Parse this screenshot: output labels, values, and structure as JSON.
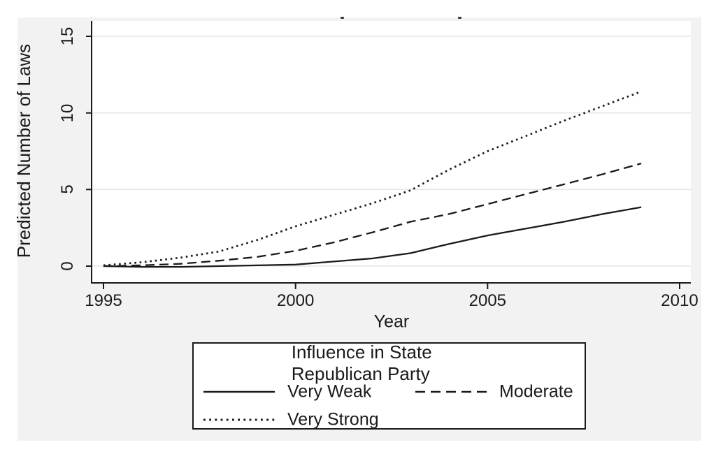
{
  "chart_data": {
    "type": "line",
    "title": "",
    "xlabel": "Year",
    "ylabel": "Predicted Number of Laws",
    "x": [
      1995,
      1996,
      1997,
      1998,
      1999,
      2000,
      2001,
      2002,
      2003,
      2004,
      2005,
      2006,
      2007,
      2008,
      2009
    ],
    "series": [
      {
        "name": "Very Weak",
        "style": "solid",
        "values": [
          0,
          -0.05,
          -0.05,
          0,
          0.05,
          0.1,
          0.3,
          0.5,
          0.85,
          1.45,
          2.0,
          2.45,
          2.9,
          3.4,
          3.85
        ]
      },
      {
        "name": "Moderate",
        "style": "dashed",
        "values": [
          0,
          0.05,
          0.15,
          0.35,
          0.6,
          1.0,
          1.55,
          2.2,
          2.9,
          3.4,
          4.05,
          4.7,
          5.35,
          6.0,
          6.7
        ]
      },
      {
        "name": "Very Strong",
        "style": "dotted",
        "values": [
          0.05,
          0.25,
          0.55,
          0.95,
          1.7,
          2.6,
          3.35,
          4.1,
          4.95,
          6.3,
          7.5,
          8.5,
          9.5,
          10.45,
          11.4
        ]
      }
    ],
    "xticks": [
      "1995",
      "2000",
      "2005",
      "2010"
    ],
    "xtick_values": [
      1995,
      2000,
      2005,
      2010
    ],
    "yticks": [
      "0",
      "5",
      "10",
      "15"
    ],
    "ytick_values": [
      0,
      5,
      10,
      15
    ],
    "xlim": [
      1994.7,
      2010.3
    ],
    "ylim": [
      -1.1,
      16.0
    ],
    "grid": "horizontal",
    "legend": {
      "title": "Influence in State Republican Party",
      "position": "bottom",
      "entries": [
        {
          "label": "Very Weak",
          "style": "solid"
        },
        {
          "label": "Moderate",
          "style": "dashed"
        },
        {
          "label": "Very Strong",
          "style": "dotted"
        }
      ]
    }
  },
  "colors": {
    "figure_background": "#f2f2f2",
    "plot_background": "#ffffff",
    "gridline": "#e6e6e6",
    "line": "#1a1a1a",
    "text": "#1a1a1a"
  }
}
